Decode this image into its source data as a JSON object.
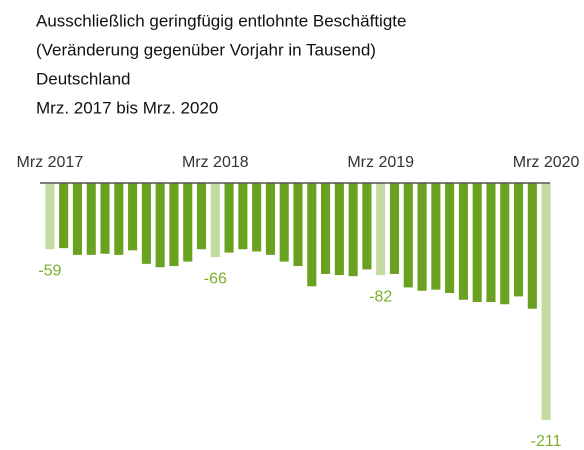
{
  "chart_data": {
    "type": "bar",
    "title_lines": [
      "Ausschließlich geringfügig entlohnte Beschäftigte",
      "(Veränderung gegenüber Vorjahr in Tausend)",
      "Deutschland",
      "Mrz. 2017 bis Mrz. 2020"
    ],
    "categories": [
      "Mrz 2017",
      null,
      null,
      null,
      null,
      null,
      null,
      null,
      null,
      null,
      null,
      null,
      "Mrz 2018",
      null,
      null,
      null,
      null,
      null,
      null,
      null,
      null,
      null,
      null,
      null,
      "Mrz 2019",
      null,
      null,
      null,
      null,
      null,
      null,
      null,
      null,
      null,
      null,
      null,
      "Mrz 2020"
    ],
    "values": [
      -59,
      -58,
      -64,
      -64,
      -63,
      -64,
      -60,
      -72,
      -75,
      -74,
      -70,
      -59,
      -66,
      -62,
      -59,
      -61,
      -64,
      -70,
      -74,
      -92,
      -81,
      -82,
      -83,
      -77,
      -82,
      -81,
      -93,
      -96,
      -95,
      -98,
      -104,
      -106,
      -106,
      -108,
      -101,
      -112,
      -211
    ],
    "color": "#6aa121",
    "highlight_color": "#c3dba0",
    "highlighted": [
      0,
      12,
      24,
      36
    ],
    "ylim": [
      -220,
      0
    ]
  }
}
